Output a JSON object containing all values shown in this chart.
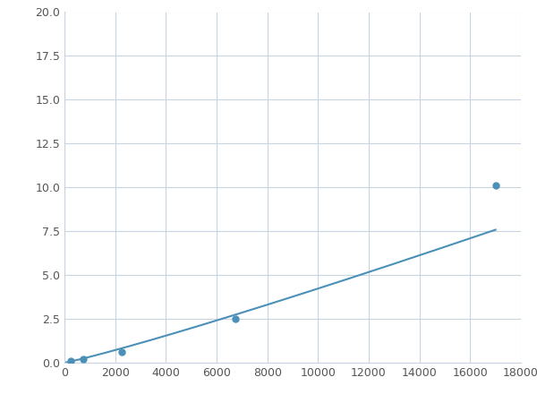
{
  "x_points": [
    250,
    750,
    2250,
    6750,
    17000
  ],
  "y_points": [
    0.1,
    0.2,
    0.6,
    2.5,
    10.1
  ],
  "line_color": "#4a90b8",
  "marker_color": "#4a90b8",
  "marker_size": 5,
  "line_width": 1.5,
  "xlim": [
    0,
    18000
  ],
  "ylim": [
    0,
    20.0
  ],
  "xticks": [
    0,
    2000,
    4000,
    6000,
    8000,
    10000,
    12000,
    14000,
    16000,
    18000
  ],
  "yticks": [
    0.0,
    2.5,
    5.0,
    7.5,
    10.0,
    12.5,
    15.0,
    17.5,
    20.0
  ],
  "grid_color": "#c8d4e0",
  "background_color": "#ffffff",
  "fig_width": 6.0,
  "fig_height": 4.5,
  "dpi": 100
}
